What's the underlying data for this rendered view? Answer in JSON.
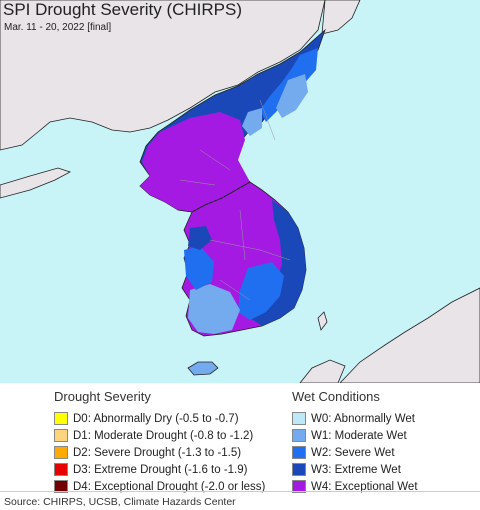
{
  "title": "SPI Drought Severity (CHIRPS)",
  "subtitle": "Mar. 11 - 20, 2022 [final]",
  "colors": {
    "water": "#c8f4f8",
    "land_outside": "#e8e4e8",
    "W0": "#bde8f7",
    "W1": "#74aaee",
    "W2": "#1f6ff0",
    "W3": "#1b48b8",
    "W4": "#a41ae2"
  },
  "legend": {
    "drought": {
      "heading": "Drought Severity",
      "items": [
        {
          "label": "D0: Abnormally Dry (-0.5 to -0.7)",
          "color": "#ffff00"
        },
        {
          "label": "D1: Moderate Drought (-0.8 to -1.2)",
          "color": "#fcd37f"
        },
        {
          "label": "D2: Severe Drought (-1.3 to -1.5)",
          "color": "#ffaa00"
        },
        {
          "label": "D3: Extreme Drought (-1.6 to -1.9)",
          "color": "#e60000"
        },
        {
          "label": "D4: Exceptional Drought (-2.0 or less)",
          "color": "#730000"
        }
      ]
    },
    "wet": {
      "heading": "Wet Conditions",
      "items": [
        {
          "label": "W0: Abnormally Wet",
          "color": "#bde8f7"
        },
        {
          "label": "W1: Moderate Wet",
          "color": "#74aaee"
        },
        {
          "label": "W2: Severe Wet",
          "color": "#1f6ff0"
        },
        {
          "label": "W3: Extreme Wet",
          "color": "#1b48b8"
        },
        {
          "label": "W4: Exceptional Wet",
          "color": "#a41ae2"
        }
      ]
    }
  },
  "source": "Source: CHIRPS, UCSB, Climate Hazards Center"
}
